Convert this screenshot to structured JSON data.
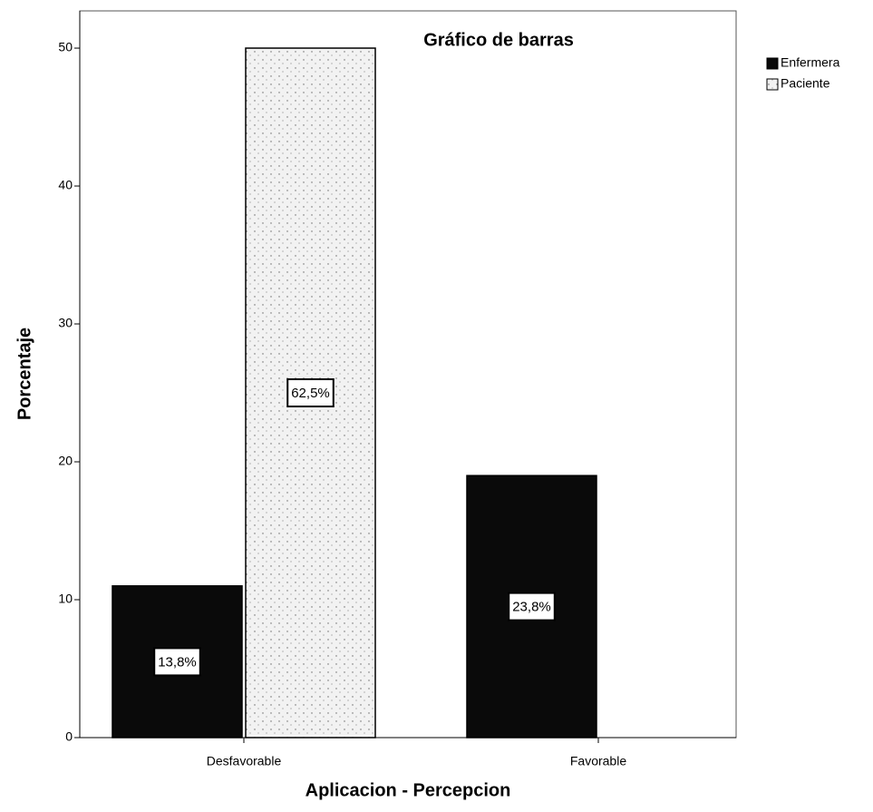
{
  "chart_data": {
    "type": "bar",
    "title": "Gráfico de barras",
    "x_label": "Aplicacion - Percepcion",
    "y_label": "Porcentaje",
    "categories": [
      "Desfavorable",
      "Favorable"
    ],
    "series": [
      {
        "name": "Enfermera",
        "color": "#0a0a0a",
        "values": [
          11,
          19
        ]
      },
      {
        "name": "Paciente",
        "color": "#f2f2f2",
        "values": [
          50,
          null
        ]
      }
    ],
    "annotations": [
      {
        "text": "13,8%",
        "series": "Enfermera",
        "category": "Desfavorable"
      },
      {
        "text": "62,5%",
        "series": "Paciente",
        "category": "Desfavorable"
      },
      {
        "text": "23,8%",
        "series": "Enfermera",
        "category": "Favorable"
      }
    ],
    "ylim": [
      0,
      52.7
    ],
    "yticks": [
      0,
      10,
      20,
      30,
      40,
      50
    ],
    "grid": false,
    "legend": "outside-top-right"
  }
}
